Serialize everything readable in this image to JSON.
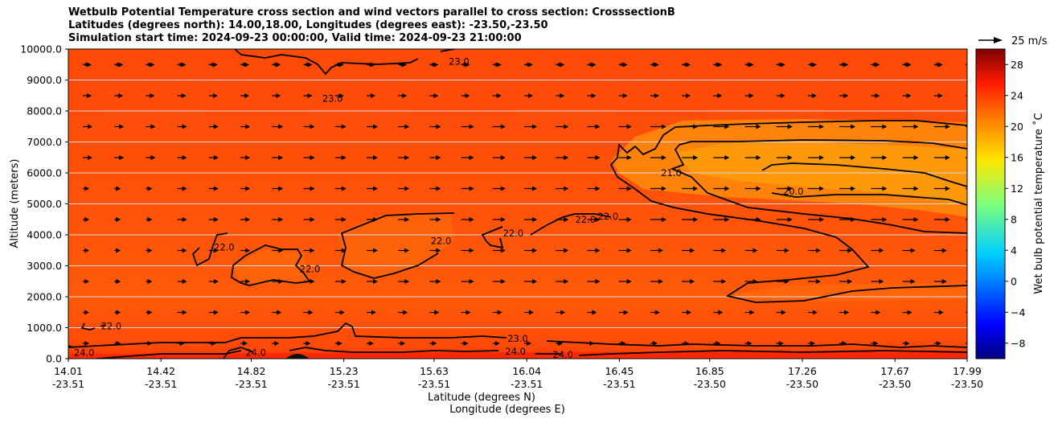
{
  "title_lines": [
    "Wetbulb Potential Temperature cross section and wind vectors parallel to cross section: CrosssectionB",
    "Latitudes (degrees north): 14.00,18.00, Longitudes (degrees east): -23.50,-23.50",
    "Simulation start time: 2024-09-23 00:00:00, Valid time: 2024-09-23 21:00:00"
  ],
  "chart_data": {
    "type": "heatmap",
    "xlabel": "Latitude (degrees N)",
    "xlabel2": "Longitude (degrees E)",
    "ylabel": "Altitude (meters)",
    "ylim": [
      0,
      10000
    ],
    "xlim": [
      14.01,
      17.99
    ],
    "yticks": [
      "0.0",
      "1000.0",
      "2000.0",
      "3000.0",
      "4000.0",
      "5000.0",
      "6000.0",
      "7000.0",
      "8000.0",
      "9000.0",
      "10000.0"
    ],
    "xticks": [
      {
        "lat": "14.01",
        "lon": "-23.51"
      },
      {
        "lat": "14.42",
        "lon": "-23.51"
      },
      {
        "lat": "14.82",
        "lon": "-23.51"
      },
      {
        "lat": "15.23",
        "lon": "-23.51"
      },
      {
        "lat": "15.63",
        "lon": "-23.51"
      },
      {
        "lat": "16.04",
        "lon": "-23.51"
      },
      {
        "lat": "16.45",
        "lon": "-23.51"
      },
      {
        "lat": "16.85",
        "lon": "-23.50"
      },
      {
        "lat": "17.26",
        "lon": "-23.50"
      },
      {
        "lat": "17.67",
        "lon": "-23.50"
      },
      {
        "lat": "17.99",
        "lon": "-23.50"
      }
    ],
    "grid": "horizontal",
    "colorbar": {
      "label": "Wet bulb potential temperature ˚C",
      "range": [
        -10,
        30
      ],
      "ticks": [
        "−8",
        "−4",
        "0",
        "4",
        "8",
        "12",
        "16",
        "20",
        "24",
        "28"
      ],
      "colormap": "jet"
    },
    "quiver_key": "25 m/s",
    "contour_labels": [
      {
        "text": "23.0",
        "lat": 15.74,
        "alt": 9600
      },
      {
        "text": "23.0",
        "lat": 15.18,
        "alt": 8400
      },
      {
        "text": "21.0",
        "lat": 16.68,
        "alt": 6000
      },
      {
        "text": "20.0",
        "lat": 17.22,
        "alt": 5400
      },
      {
        "text": "22.0",
        "lat": 14.7,
        "alt": 3600
      },
      {
        "text": "22.0",
        "lat": 15.08,
        "alt": 2900
      },
      {
        "text": "22.0",
        "lat": 15.66,
        "alt": 3800
      },
      {
        "text": "22.0",
        "lat": 15.98,
        "alt": 4050
      },
      {
        "text": "22.0",
        "lat": 16.3,
        "alt": 4500
      },
      {
        "text": "22.0",
        "lat": 16.4,
        "alt": 4600
      },
      {
        "text": "22.0",
        "lat": 14.2,
        "alt": 1050
      },
      {
        "text": "23.0",
        "lat": 16.0,
        "alt": 650
      },
      {
        "text": "24.0",
        "lat": 15.99,
        "alt": 230
      },
      {
        "text": "24.0",
        "lat": 16.2,
        "alt": 130
      },
      {
        "text": "24.0",
        "lat": 14.84,
        "alt": 200
      },
      {
        "text": "24.0",
        "lat": 14.08,
        "alt": 200
      }
    ]
  }
}
